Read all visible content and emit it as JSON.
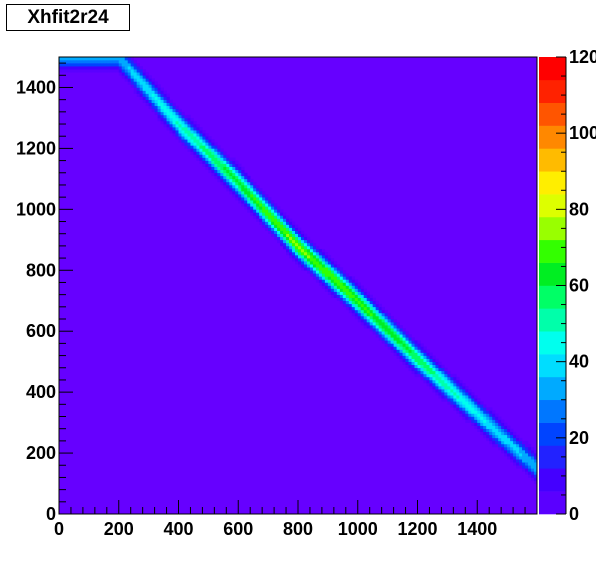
{
  "chart_data": {
    "type": "heatmap",
    "title": "Xhfit2r24",
    "xlabel": "",
    "ylabel": "",
    "xlim": [
      0,
      1600
    ],
    "ylim": [
      0,
      1500
    ],
    "zlim": [
      0,
      120
    ],
    "x_ticks": [
      "0",
      "200",
      "400",
      "600",
      "800",
      "1000",
      "1200",
      "1400"
    ],
    "y_ticks": [
      "0",
      "200",
      "400",
      "600",
      "800",
      "1000",
      "1200",
      "1400"
    ],
    "z_ticks": [
      "0",
      "20",
      "40",
      "60",
      "80",
      "100",
      "120"
    ],
    "background_value": 0,
    "band": {
      "description_points": [
        {
          "x": 200,
          "y": 1500,
          "peak": 40
        },
        {
          "x": 400,
          "y": 1280,
          "peak": 55
        },
        {
          "x": 600,
          "y": 1090,
          "peak": 70
        },
        {
          "x": 800,
          "y": 880,
          "peak": 80
        },
        {
          "x": 1000,
          "y": 700,
          "peak": 75
        },
        {
          "x": 1200,
          "y": 510,
          "peak": 65
        },
        {
          "x": 1400,
          "y": 330,
          "peak": 50
        },
        {
          "x": 1600,
          "y": 150,
          "peak": 40
        }
      ],
      "width_y": 55
    },
    "palette": [
      "#6600ff",
      "#5a00ff",
      "#4400ff",
      "#2222ff",
      "#0044ff",
      "#0077ff",
      "#00aaff",
      "#00ddff",
      "#00ffee",
      "#00ffaa",
      "#00ff66",
      "#00ee22",
      "#33ff00",
      "#99ff00",
      "#ddff00",
      "#ffee00",
      "#ffbb00",
      "#ff8800",
      "#ff5500",
      "#ff2200",
      "#ff0000"
    ]
  }
}
